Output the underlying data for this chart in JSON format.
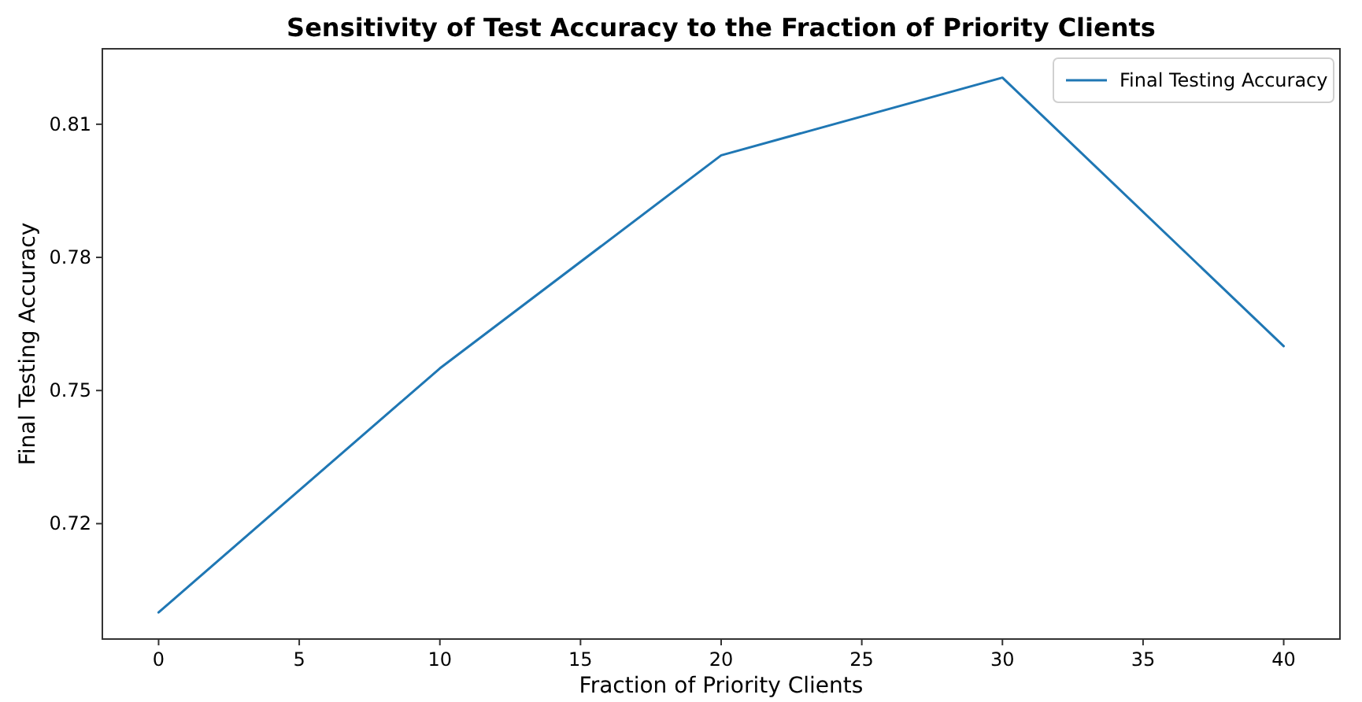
{
  "chart_data": {
    "type": "line",
    "title": "Sensitivity of Test Accuracy to the Fraction of Priority Clients",
    "xlabel": "Fraction of Priority Clients",
    "ylabel": "Final Testing Accuracy",
    "x": [
      0,
      10,
      20,
      30,
      40
    ],
    "series": [
      {
        "name": "Final Testing Accuracy",
        "color": "#1f77b4",
        "values": [
          0.7,
          0.755,
          0.803,
          0.8205,
          0.76
        ]
      }
    ],
    "xlim": [
      -2,
      42
    ],
    "xticks": [
      0,
      5,
      10,
      15,
      20,
      25,
      30,
      35,
      40
    ],
    "ylim": [
      0.694,
      0.827
    ],
    "yticks": [
      0.72,
      0.75,
      0.78,
      0.81
    ],
    "legend": "top right",
    "grid": false,
    "marker": "none",
    "line_style": "solid"
  }
}
